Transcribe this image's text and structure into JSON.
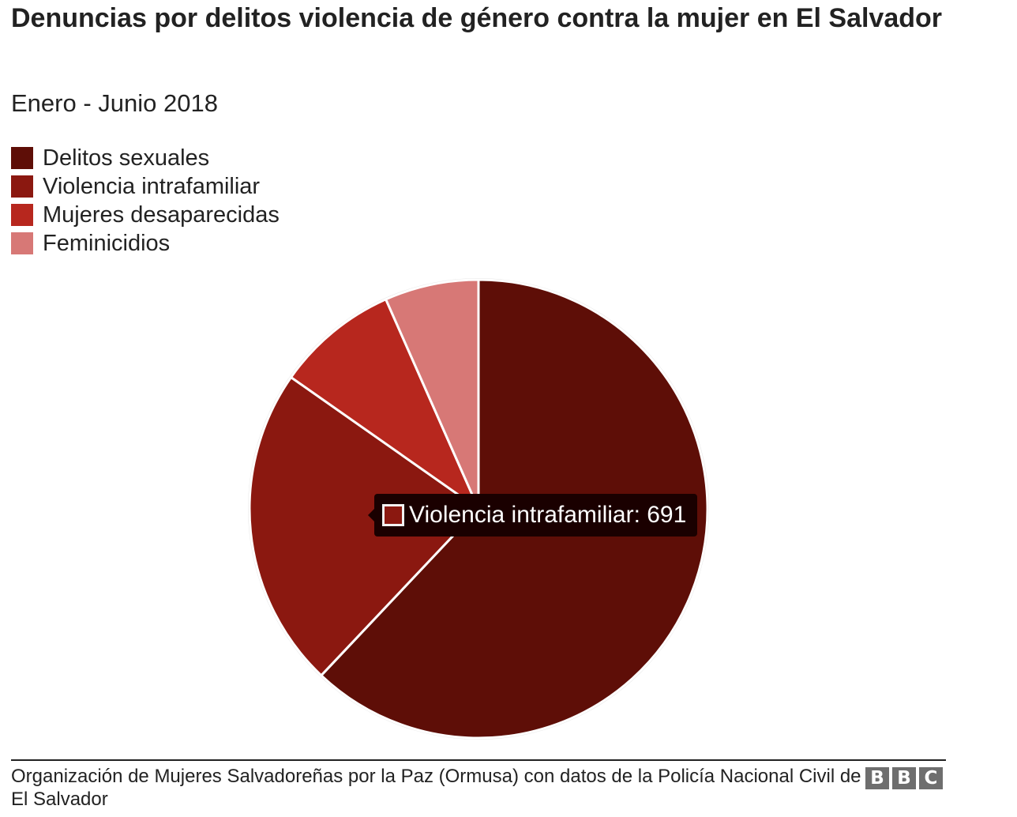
{
  "header": {
    "title": "Denuncias por delitos violencia de género contra la mujer en El Salvador",
    "subtitle": "Enero - Junio 2018"
  },
  "legend": [
    {
      "label": "Delitos sexuales",
      "color": "#5e0e07"
    },
    {
      "label": "Violencia intrafamiliar",
      "color": "#8b1810"
    },
    {
      "label": "Mujeres desaparecidas",
      "color": "#b7271e"
    },
    {
      "label": "Feminicidios",
      "color": "#d77876"
    }
  ],
  "tooltip": {
    "text": "Violencia intrafamiliar: 691",
    "color": "#8b1810"
  },
  "footer": {
    "source": "Organización de Mujeres Salvadoreñas por la Paz (Ormusa) con datos de la Policía Nacional Civil de El Salvador",
    "logo": [
      "B",
      "B",
      "C"
    ]
  },
  "chart_data": {
    "type": "pie",
    "title": "Denuncias por delitos violencia de género contra la mujer en El Salvador",
    "subtitle": "Enero - Junio 2018",
    "legend_position": "top-left",
    "start_angle": "12 o'clock, clockwise",
    "series": [
      {
        "name": "Delitos sexuales",
        "value": 1890,
        "color": "#5e0e07"
      },
      {
        "name": "Violencia intrafamiliar",
        "value": 691,
        "color": "#8b1810"
      },
      {
        "name": "Mujeres desaparecidas",
        "value": 263,
        "color": "#b7271e"
      },
      {
        "name": "Feminicidios",
        "value": 202,
        "color": "#d77876"
      }
    ]
  }
}
